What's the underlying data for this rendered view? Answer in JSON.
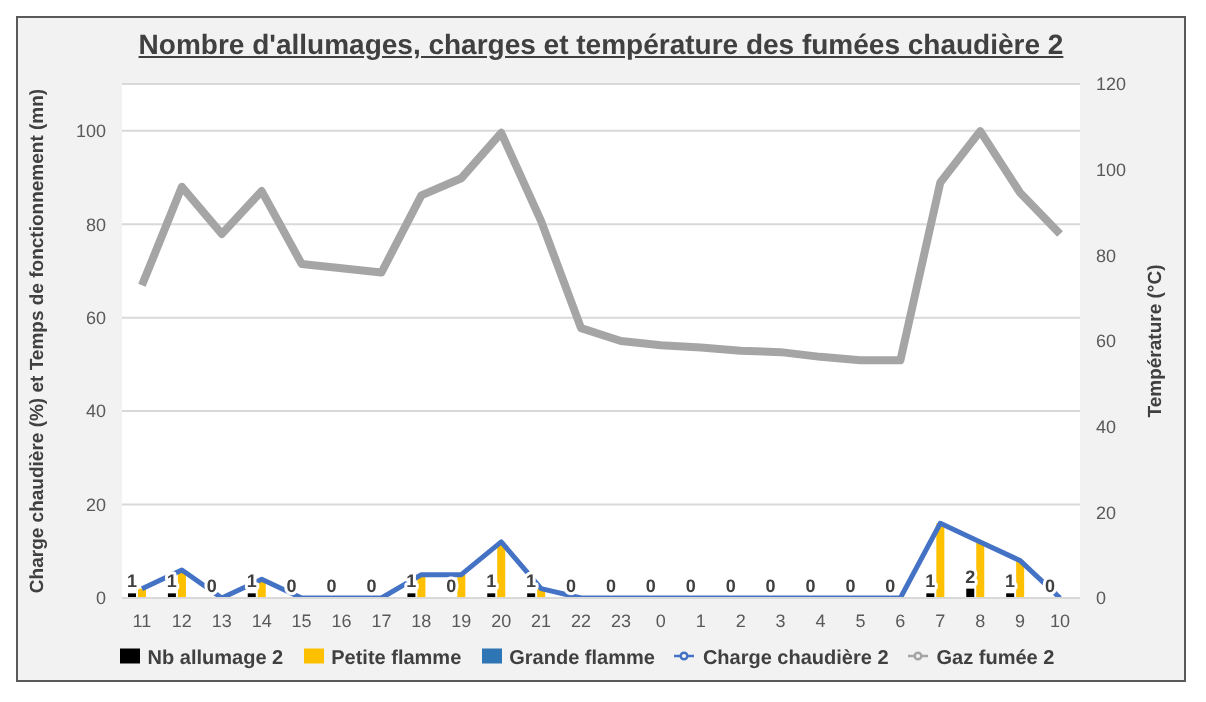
{
  "chart_data": {
    "type": "bar",
    "title": "Nombre d'allumages, charges et température des fumées chaudière 2",
    "ylabel": "Charge chaudière (%) et Temps de fonctionnement (mn)",
    "y2label": "Température (°C)",
    "categories": [
      "11",
      "12",
      "13",
      "14",
      "15",
      "16",
      "17",
      "18",
      "19",
      "20",
      "21",
      "22",
      "23",
      "0",
      "1",
      "2",
      "3",
      "4",
      "5",
      "6",
      "7",
      "8",
      "9",
      "10"
    ],
    "series": [
      {
        "name": "Nb allumage 2",
        "color": "#000000",
        "values": [
          1,
          1,
          0,
          1,
          0,
          0,
          0,
          1,
          0,
          1,
          1,
          0,
          0,
          0,
          0,
          0,
          0,
          0,
          0,
          0,
          1,
          2,
          1,
          0
        ],
        "value_labels": [
          "1",
          "1",
          "0",
          "1",
          "0",
          "0",
          "0",
          "1",
          "0",
          "1",
          "1",
          "0",
          "0",
          "0",
          "0",
          "0",
          "0",
          "0",
          "0",
          "0",
          "1",
          "2",
          "1",
          "0"
        ]
      },
      {
        "name": "Petite flamme",
        "color": "#ffc000",
        "values": [
          2,
          6,
          0,
          4,
          0,
          0,
          0,
          5,
          5,
          12,
          2,
          0,
          0,
          0,
          0,
          0,
          0,
          0,
          0,
          0,
          16,
          12,
          8,
          0
        ]
      },
      {
        "name": "Grande flamme",
        "color": "#2e75b6",
        "values": [
          0,
          0,
          0,
          0,
          0,
          0,
          0,
          0,
          0,
          0,
          0,
          0,
          0,
          0,
          0,
          0,
          0,
          0,
          0,
          0,
          0,
          0,
          0,
          0
        ]
      },
      {
        "name": "Charge chaudière 2",
        "type": "line",
        "color": "#4472c4",
        "values": [
          2,
          6,
          0,
          4,
          0,
          0,
          0,
          5,
          5,
          12,
          2,
          0,
          0,
          0,
          0,
          0,
          0,
          0,
          0,
          0,
          16,
          12,
          8,
          0
        ]
      },
      {
        "name": "Gaz fumée 2",
        "type": "line",
        "axis": "y2",
        "color": "#a5a5a5",
        "values": [
          73,
          96,
          85,
          95,
          78,
          77,
          76,
          94,
          98,
          108.6,
          88,
          63,
          60,
          59,
          58.5,
          57.7,
          57.4,
          56.3,
          55.5,
          55.5,
          97,
          109,
          94.6,
          85
        ]
      }
    ],
    "ylim": [
      0,
      110
    ],
    "yticks": [
      0,
      20,
      40,
      60,
      80,
      100
    ],
    "y2lim": [
      0,
      120
    ],
    "y2ticks": [
      0,
      20,
      40,
      60,
      80,
      100,
      120
    ],
    "grid": "y",
    "legend": "bottom",
    "marker": "none"
  }
}
